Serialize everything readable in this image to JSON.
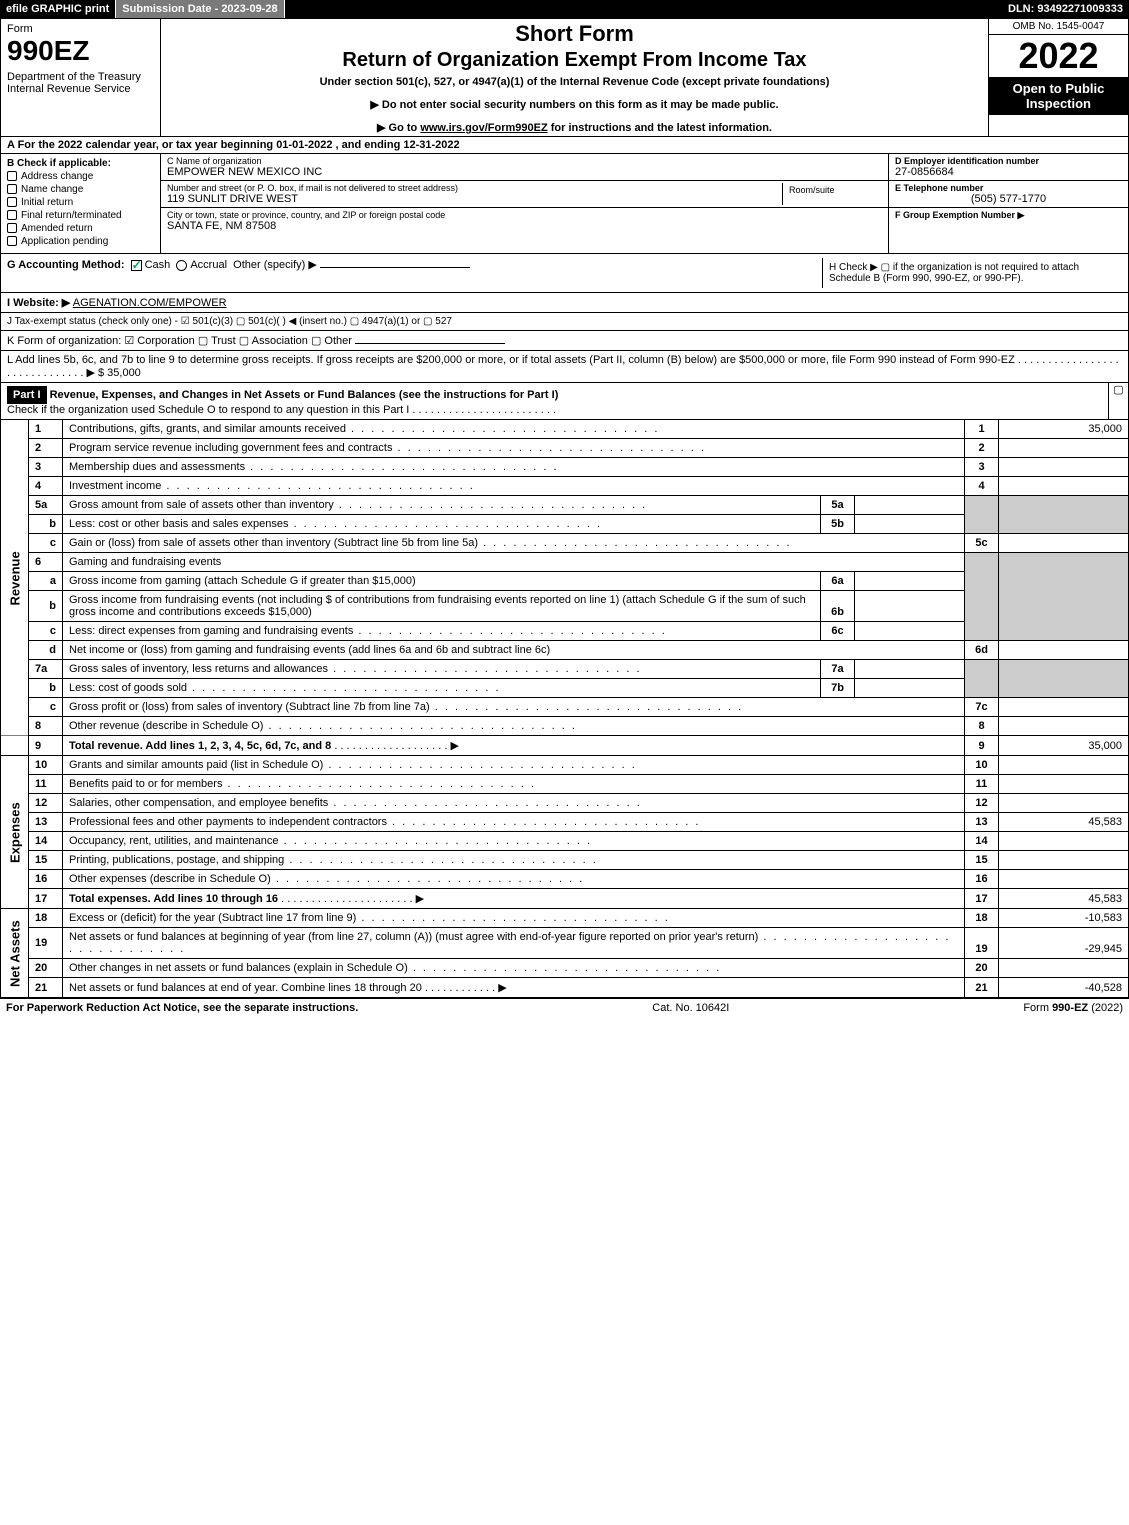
{
  "topbar": {
    "efile": "efile GRAPHIC print",
    "submission": "Submission Date - 2023-09-28",
    "dln": "DLN: 93492271009333"
  },
  "header": {
    "form_label": "Form",
    "form_number": "990EZ",
    "dept": "Department of the Treasury\nInternal Revenue Service",
    "title_short": "Short Form",
    "title_main": "Return of Organization Exempt From Income Tax",
    "subtitle": "Under section 501(c), 527, or 4947(a)(1) of the Internal Revenue Code (except private foundations)",
    "note1": "▶ Do not enter social security numbers on this form as it may be made public.",
    "note2_prefix": "▶ Go to ",
    "note2_link": "www.irs.gov/Form990EZ",
    "note2_suffix": " for instructions and the latest information.",
    "omb": "OMB No. 1545-0047",
    "year": "2022",
    "inspection": "Open to Public Inspection"
  },
  "rowA": "A  For the 2022 calendar year, or tax year beginning 01-01-2022 , and ending 12-31-2022",
  "sectionB": {
    "header": "B  Check if applicable:",
    "items": [
      "Address change",
      "Name change",
      "Initial return",
      "Final return/terminated",
      "Amended return",
      "Application pending"
    ]
  },
  "sectionC": {
    "name_lbl": "C Name of organization",
    "name_val": "EMPOWER NEW MEXICO INC",
    "street_lbl": "Number and street (or P. O. box, if mail is not delivered to street address)",
    "street_val": "119 SUNLIT DRIVE WEST",
    "room_lbl": "Room/suite",
    "city_lbl": "City or town, state or province, country, and ZIP or foreign postal code",
    "city_val": "SANTA FE, NM  87508"
  },
  "sectionD": {
    "ein_lbl": "D Employer identification number",
    "ein_val": "27-0856684",
    "tel_lbl": "E Telephone number",
    "tel_val": "(505) 577-1770",
    "group_lbl": "F Group Exemption Number  ▶"
  },
  "rowG": {
    "label": "G Accounting Method:",
    "cash": "Cash",
    "accrual": "Accrual",
    "other": "Other (specify) ▶"
  },
  "rowH": "H  Check ▶  ▢  if the organization is not required to attach Schedule B (Form 990, 990-EZ, or 990-PF).",
  "rowI": {
    "label": "I Website: ▶",
    "val": "AGENATION.COM/EMPOWER"
  },
  "rowJ": "J Tax-exempt status (check only one) - ☑ 501(c)(3)  ▢ 501(c)(  ) ◀ (insert no.)  ▢ 4947(a)(1) or  ▢ 527",
  "rowK": "K Form of organization:  ☑ Corporation   ▢ Trust   ▢ Association   ▢ Other",
  "rowL": {
    "text": "L Add lines 5b, 6c, and 7b to line 9 to determine gross receipts. If gross receipts are $200,000 or more, or if total assets (Part II, column (B) below) are $500,000 or more, file Form 990 instead of Form 990-EZ . . . . . . . . . . . . . . . . . . . . . . . . . . . . . . ▶ $",
    "val": "35,000"
  },
  "part1": {
    "label": "Part I",
    "title": "Revenue, Expenses, and Changes in Net Assets or Fund Balances (see the instructions for Part I)",
    "check": "Check if the organization used Schedule O to respond to any question in this Part I . . . . . . . . . . . . . . . . . . . . . . . .",
    "checkbox": "▢"
  },
  "sides": {
    "revenue": "Revenue",
    "expenses": "Expenses",
    "netassets": "Net Assets"
  },
  "lines": {
    "l1": {
      "n": "1",
      "d": "Contributions, gifts, grants, and similar amounts received",
      "r": "1",
      "v": "35,000"
    },
    "l2": {
      "n": "2",
      "d": "Program service revenue including government fees and contracts",
      "r": "2",
      "v": ""
    },
    "l3": {
      "n": "3",
      "d": "Membership dues and assessments",
      "r": "3",
      "v": ""
    },
    "l4": {
      "n": "4",
      "d": "Investment income",
      "r": "4",
      "v": ""
    },
    "l5a": {
      "n": "5a",
      "d": "Gross amount from sale of assets other than inventory",
      "sn": "5a",
      "sv": ""
    },
    "l5b": {
      "n": "b",
      "d": "Less: cost or other basis and sales expenses",
      "sn": "5b",
      "sv": ""
    },
    "l5c": {
      "n": "c",
      "d": "Gain or (loss) from sale of assets other than inventory (Subtract line 5b from line 5a)",
      "r": "5c",
      "v": ""
    },
    "l6": {
      "n": "6",
      "d": "Gaming and fundraising events"
    },
    "l6a": {
      "n": "a",
      "d": "Gross income from gaming (attach Schedule G if greater than $15,000)",
      "sn": "6a",
      "sv": ""
    },
    "l6b": {
      "n": "b",
      "d": "Gross income from fundraising events (not including $                    of contributions from fundraising events reported on line 1) (attach Schedule G if the sum of such gross income and contributions exceeds $15,000)",
      "sn": "6b",
      "sv": ""
    },
    "l6c": {
      "n": "c",
      "d": "Less: direct expenses from gaming and fundraising events",
      "sn": "6c",
      "sv": ""
    },
    "l6d": {
      "n": "d",
      "d": "Net income or (loss) from gaming and fundraising events (add lines 6a and 6b and subtract line 6c)",
      "r": "6d",
      "v": ""
    },
    "l7a": {
      "n": "7a",
      "d": "Gross sales of inventory, less returns and allowances",
      "sn": "7a",
      "sv": ""
    },
    "l7b": {
      "n": "b",
      "d": "Less: cost of goods sold",
      "sn": "7b",
      "sv": ""
    },
    "l7c": {
      "n": "c",
      "d": "Gross profit or (loss) from sales of inventory (Subtract line 7b from line 7a)",
      "r": "7c",
      "v": ""
    },
    "l8": {
      "n": "8",
      "d": "Other revenue (describe in Schedule O)",
      "r": "8",
      "v": ""
    },
    "l9": {
      "n": "9",
      "d": "Total revenue. Add lines 1, 2, 3, 4, 5c, 6d, 7c, and 8",
      "r": "9",
      "v": "35,000",
      "arrow": true,
      "bold": true
    },
    "l10": {
      "n": "10",
      "d": "Grants and similar amounts paid (list in Schedule O)",
      "r": "10",
      "v": ""
    },
    "l11": {
      "n": "11",
      "d": "Benefits paid to or for members",
      "r": "11",
      "v": ""
    },
    "l12": {
      "n": "12",
      "d": "Salaries, other compensation, and employee benefits",
      "r": "12",
      "v": ""
    },
    "l13": {
      "n": "13",
      "d": "Professional fees and other payments to independent contractors",
      "r": "13",
      "v": "45,583"
    },
    "l14": {
      "n": "14",
      "d": "Occupancy, rent, utilities, and maintenance",
      "r": "14",
      "v": ""
    },
    "l15": {
      "n": "15",
      "d": "Printing, publications, postage, and shipping",
      "r": "15",
      "v": ""
    },
    "l16": {
      "n": "16",
      "d": "Other expenses (describe in Schedule O)",
      "r": "16",
      "v": ""
    },
    "l17": {
      "n": "17",
      "d": "Total expenses. Add lines 10 through 16",
      "r": "17",
      "v": "45,583",
      "arrow": true,
      "bold": true
    },
    "l18": {
      "n": "18",
      "d": "Excess or (deficit) for the year (Subtract line 17 from line 9)",
      "r": "18",
      "v": "-10,583"
    },
    "l19": {
      "n": "19",
      "d": "Net assets or fund balances at beginning of year (from line 27, column (A)) (must agree with end-of-year figure reported on prior year's return)",
      "r": "19",
      "v": "-29,945"
    },
    "l20": {
      "n": "20",
      "d": "Other changes in net assets or fund balances (explain in Schedule O)",
      "r": "20",
      "v": ""
    },
    "l21": {
      "n": "21",
      "d": "Net assets or fund balances at end of year. Combine lines 18 through 20",
      "r": "21",
      "v": "-40,528",
      "arrow": true
    }
  },
  "footer": {
    "left": "For Paperwork Reduction Act Notice, see the separate instructions.",
    "mid": "Cat. No. 10642I",
    "right": "Form 990-EZ (2022)"
  }
}
